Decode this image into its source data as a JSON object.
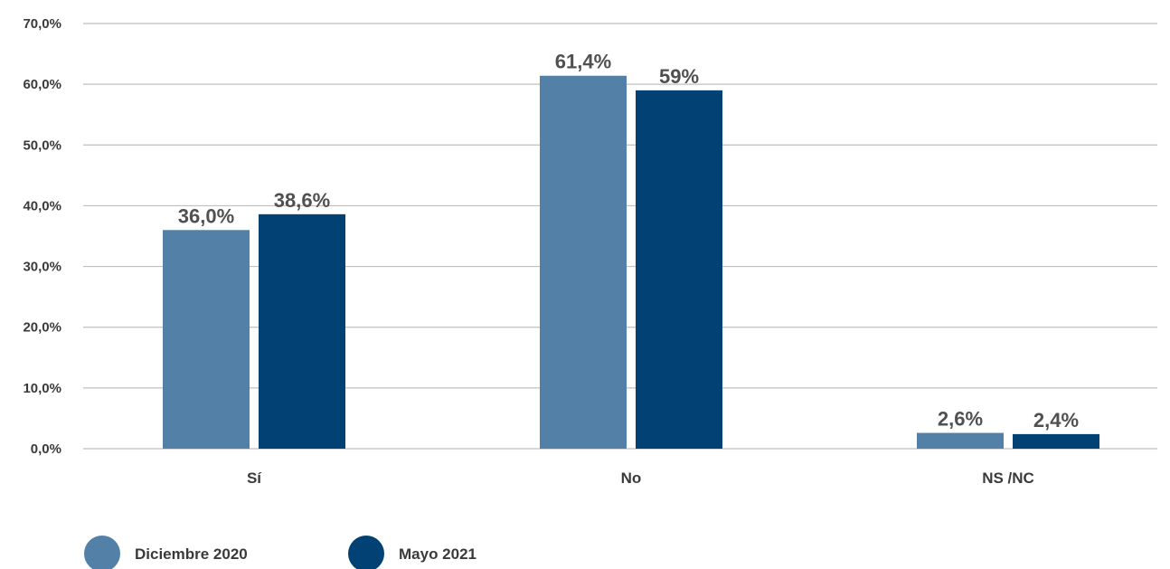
{
  "chart_data": {
    "type": "bar",
    "title": "",
    "xlabel": "",
    "ylabel": "",
    "categories": [
      "Sí",
      "No",
      "NS /NC"
    ],
    "series": [
      {
        "name": "Diciembre 2020",
        "color": "#5380a7",
        "values": [
          36.0,
          61.4,
          2.6
        ],
        "labels": [
          "36,0%",
          "61,4%",
          "2,6%"
        ]
      },
      {
        "name": "Mayo 2021",
        "color": "#024174",
        "values": [
          38.6,
          59.0,
          2.4
        ],
        "labels": [
          "38,6%",
          "59%",
          "2,4%"
        ]
      }
    ],
    "ylim": [
      0,
      70
    ],
    "yticks": [
      0,
      10,
      20,
      30,
      40,
      50,
      60,
      70
    ],
    "ytick_labels": [
      "0,0%",
      "10,0%",
      "20,0%",
      "30,0%",
      "40,0%",
      "50,0%",
      "60,0%",
      "70,0%"
    ],
    "grid": true,
    "legend_position": "bottom-left"
  }
}
